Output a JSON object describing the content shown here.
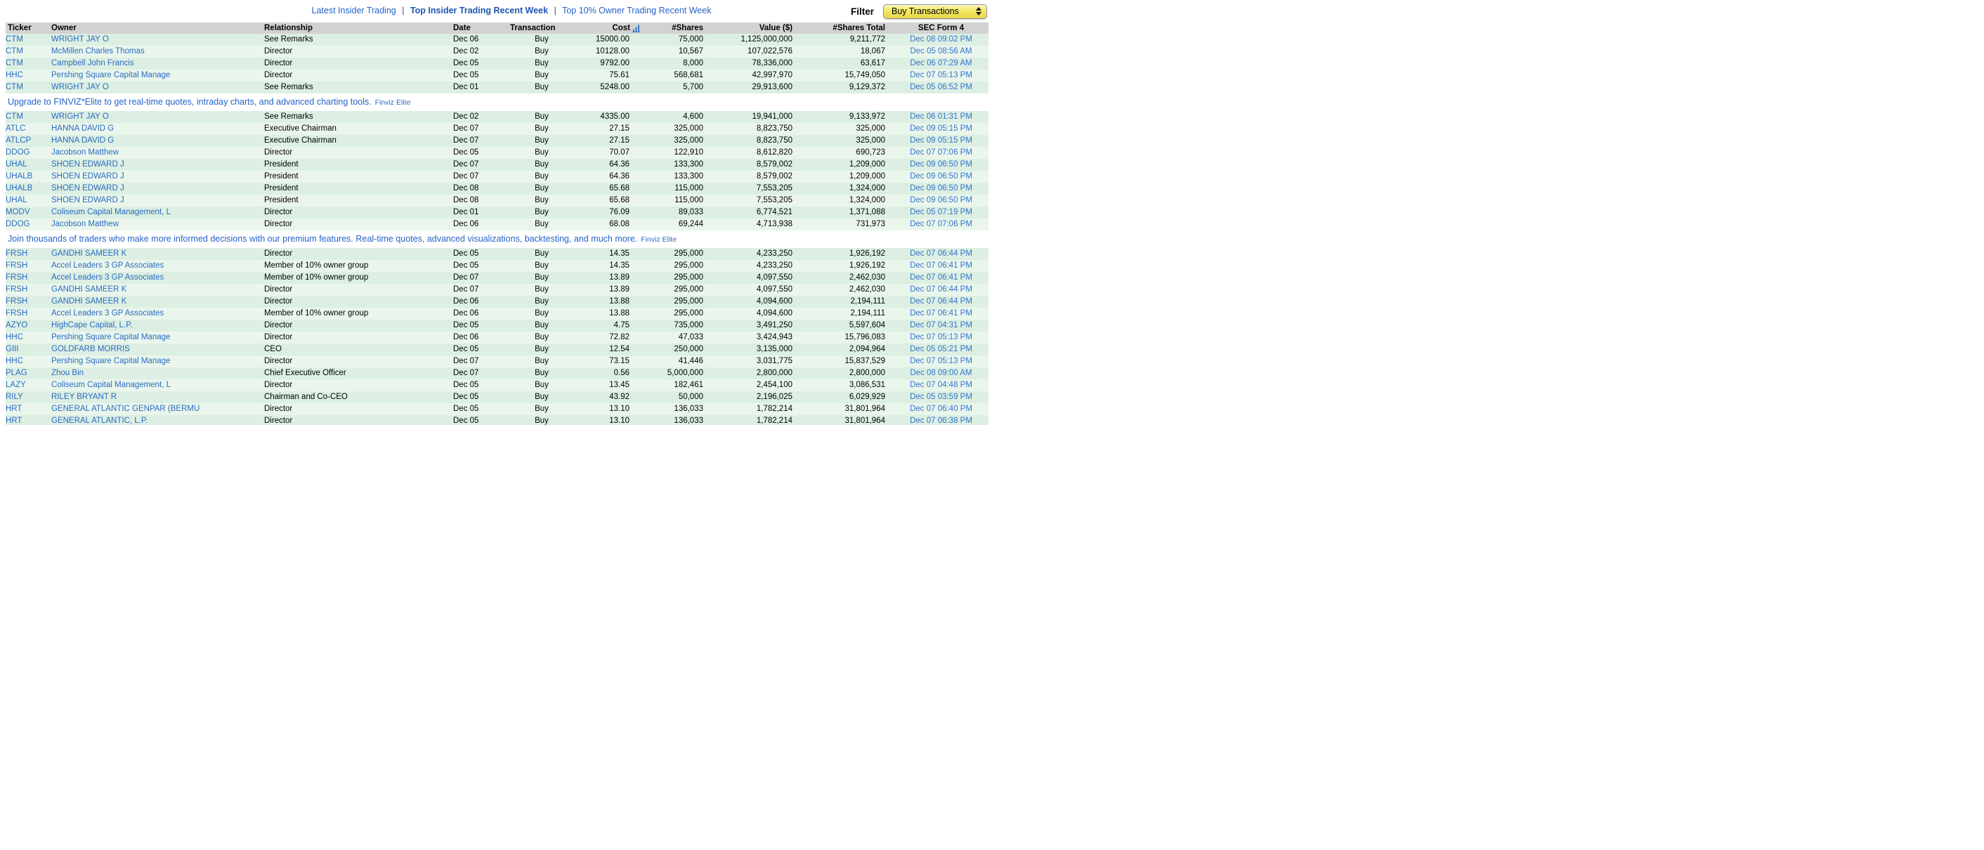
{
  "nav": {
    "separator": "|",
    "links": [
      {
        "label": "Latest Insider Trading"
      },
      {
        "label": "Top Insider Trading Recent Week"
      },
      {
        "label": "Top 10% Owner Trading Recent Week"
      }
    ],
    "filter": {
      "label": "Filter",
      "selected": "Buy Transactions"
    }
  },
  "colors": {
    "link_blue": "#2b6bc2",
    "sec_form_link_blue": "#3374cd",
    "nav_blue": "#2563c9",
    "promo_blue": "#2563c9",
    "elite_purple": "#b760c9",
    "row_green_dark": "#dcefe2",
    "row_green_light": "#eaf6ec",
    "header_gray": "#d2d2d2",
    "filter_yellow": "#f2e664"
  },
  "promos": [
    {
      "text": "Upgrade to FINVIZ*Elite to get real-time quotes, intraday charts, and advanced charting tools.",
      "link": "Finviz Elite"
    },
    {
      "text": "Join thousands of traders who make more informed decisions with our premium features. Real-time quotes, advanced visualizations, backtesting, and much more.",
      "link": "Finviz Elite"
    }
  ],
  "table": {
    "columns": [
      "Ticker",
      "Owner",
      "Relationship",
      "Date",
      "Transaction",
      "Cost",
      "#Shares",
      "Value ($)",
      "#Shares Total",
      "SEC Form 4"
    ],
    "sorted_column": "Cost",
    "sort_icon": "bar-chart-icon",
    "groups": [
      {
        "rows": [
          {
            "ticker": "CTM",
            "owner": "WRIGHT JAY O",
            "relationship": "See Remarks",
            "date": "Dec 06",
            "transaction": "Buy",
            "cost": "15000.00",
            "shares": "75,000",
            "value": "1,125,000,000",
            "shares_total": "9,211,772",
            "sec_form": "Dec 08 09:02 PM"
          },
          {
            "ticker": "CTM",
            "owner": "McMillen Charles Thomas",
            "relationship": "Director",
            "date": "Dec 02",
            "transaction": "Buy",
            "cost": "10128.00",
            "shares": "10,567",
            "value": "107,022,576",
            "shares_total": "18,067",
            "sec_form": "Dec 05 08:56 AM"
          },
          {
            "ticker": "CTM",
            "owner": "Campbell John Francis",
            "relationship": "Director",
            "date": "Dec 05",
            "transaction": "Buy",
            "cost": "9792.00",
            "shares": "8,000",
            "value": "78,336,000",
            "shares_total": "63,617",
            "sec_form": "Dec 06 07:29 AM"
          },
          {
            "ticker": "HHC",
            "owner": "Pershing Square Capital Manage",
            "relationship": "Director",
            "date": "Dec 05",
            "transaction": "Buy",
            "cost": "75.61",
            "shares": "568,681",
            "value": "42,997,970",
            "shares_total": "15,749,050",
            "sec_form": "Dec 07 05:13 PM"
          },
          {
            "ticker": "CTM",
            "owner": "WRIGHT JAY O",
            "relationship": "See Remarks",
            "date": "Dec 01",
            "transaction": "Buy",
            "cost": "5248.00",
            "shares": "5,700",
            "value": "29,913,600",
            "shares_total": "9,129,372",
            "sec_form": "Dec 05 06:52 PM"
          }
        ]
      },
      {
        "rows": [
          {
            "ticker": "CTM",
            "owner": "WRIGHT JAY O",
            "relationship": "See Remarks",
            "date": "Dec 02",
            "transaction": "Buy",
            "cost": "4335.00",
            "shares": "4,600",
            "value": "19,941,000",
            "shares_total": "9,133,972",
            "sec_form": "Dec 06 01:31 PM"
          },
          {
            "ticker": "ATLC",
            "owner": "HANNA DAVID G",
            "relationship": "Executive Chairman",
            "date": "Dec 07",
            "transaction": "Buy",
            "cost": "27.15",
            "shares": "325,000",
            "value": "8,823,750",
            "shares_total": "325,000",
            "sec_form": "Dec 09 05:15 PM"
          },
          {
            "ticker": "ATLCP",
            "owner": "HANNA DAVID G",
            "relationship": "Executive Chairman",
            "date": "Dec 07",
            "transaction": "Buy",
            "cost": "27.15",
            "shares": "325,000",
            "value": "8,823,750",
            "shares_total": "325,000",
            "sec_form": "Dec 09 05:15 PM"
          },
          {
            "ticker": "DDOG",
            "owner": "Jacobson Matthew",
            "relationship": "Director",
            "date": "Dec 05",
            "transaction": "Buy",
            "cost": "70.07",
            "shares": "122,910",
            "value": "8,612,820",
            "shares_total": "690,723",
            "sec_form": "Dec 07 07:06 PM"
          },
          {
            "ticker": "UHAL",
            "owner": "SHOEN EDWARD J",
            "relationship": "President",
            "date": "Dec 07",
            "transaction": "Buy",
            "cost": "64.36",
            "shares": "133,300",
            "value": "8,579,002",
            "shares_total": "1,209,000",
            "sec_form": "Dec 09 06:50 PM"
          },
          {
            "ticker": "UHALB",
            "owner": "SHOEN EDWARD J",
            "relationship": "President",
            "date": "Dec 07",
            "transaction": "Buy",
            "cost": "64.36",
            "shares": "133,300",
            "value": "8,579,002",
            "shares_total": "1,209,000",
            "sec_form": "Dec 09 06:50 PM"
          },
          {
            "ticker": "UHALB",
            "owner": "SHOEN EDWARD J",
            "relationship": "President",
            "date": "Dec 08",
            "transaction": "Buy",
            "cost": "65.68",
            "shares": "115,000",
            "value": "7,553,205",
            "shares_total": "1,324,000",
            "sec_form": "Dec 09 06:50 PM"
          },
          {
            "ticker": "UHAL",
            "owner": "SHOEN EDWARD J",
            "relationship": "President",
            "date": "Dec 08",
            "transaction": "Buy",
            "cost": "65.68",
            "shares": "115,000",
            "value": "7,553,205",
            "shares_total": "1,324,000",
            "sec_form": "Dec 09 06:50 PM"
          },
          {
            "ticker": "MODV",
            "owner": "Coliseum Capital Management, L",
            "relationship": "Director",
            "date": "Dec 01",
            "transaction": "Buy",
            "cost": "76.09",
            "shares": "89,033",
            "value": "6,774,521",
            "shares_total": "1,371,088",
            "sec_form": "Dec 05 07:19 PM"
          },
          {
            "ticker": "DDOG",
            "owner": "Jacobson Matthew",
            "relationship": "Director",
            "date": "Dec 06",
            "transaction": "Buy",
            "cost": "68.08",
            "shares": "69,244",
            "value": "4,713,938",
            "shares_total": "731,973",
            "sec_form": "Dec 07 07:06 PM"
          }
        ]
      },
      {
        "rows": [
          {
            "ticker": "FRSH",
            "owner": "GANDHI SAMEER K",
            "relationship": "Director",
            "date": "Dec 05",
            "transaction": "Buy",
            "cost": "14.35",
            "shares": "295,000",
            "value": "4,233,250",
            "shares_total": "1,926,192",
            "sec_form": "Dec 07 06:44 PM"
          },
          {
            "ticker": "FRSH",
            "owner": "Accel Leaders 3 GP Associates",
            "relationship": "Member of 10% owner group",
            "date": "Dec 05",
            "transaction": "Buy",
            "cost": "14.35",
            "shares": "295,000",
            "value": "4,233,250",
            "shares_total": "1,926,192",
            "sec_form": "Dec 07 06:41 PM"
          },
          {
            "ticker": "FRSH",
            "owner": "Accel Leaders 3 GP Associates",
            "relationship": "Member of 10% owner group",
            "date": "Dec 07",
            "transaction": "Buy",
            "cost": "13.89",
            "shares": "295,000",
            "value": "4,097,550",
            "shares_total": "2,462,030",
            "sec_form": "Dec 07 06:41 PM"
          },
          {
            "ticker": "FRSH",
            "owner": "GANDHI SAMEER K",
            "relationship": "Director",
            "date": "Dec 07",
            "transaction": "Buy",
            "cost": "13.89",
            "shares": "295,000",
            "value": "4,097,550",
            "shares_total": "2,462,030",
            "sec_form": "Dec 07 06:44 PM"
          },
          {
            "ticker": "FRSH",
            "owner": "GANDHI SAMEER K",
            "relationship": "Director",
            "date": "Dec 06",
            "transaction": "Buy",
            "cost": "13.88",
            "shares": "295,000",
            "value": "4,094,600",
            "shares_total": "2,194,111",
            "sec_form": "Dec 07 06:44 PM"
          },
          {
            "ticker": "FRSH",
            "owner": "Accel Leaders 3 GP Associates",
            "relationship": "Member of 10% owner group",
            "date": "Dec 06",
            "transaction": "Buy",
            "cost": "13.88",
            "shares": "295,000",
            "value": "4,094,600",
            "shares_total": "2,194,111",
            "sec_form": "Dec 07 06:41 PM"
          },
          {
            "ticker": "AZYO",
            "owner": "HighCape Capital, L.P.",
            "relationship": "Director",
            "date": "Dec 05",
            "transaction": "Buy",
            "cost": "4.75",
            "shares": "735,000",
            "value": "3,491,250",
            "shares_total": "5,597,604",
            "sec_form": "Dec 07 04:31 PM"
          },
          {
            "ticker": "HHC",
            "owner": "Pershing Square Capital Manage",
            "relationship": "Director",
            "date": "Dec 06",
            "transaction": "Buy",
            "cost": "72.82",
            "shares": "47,033",
            "value": "3,424,943",
            "shares_total": "15,796,083",
            "sec_form": "Dec 07 05:13 PM"
          },
          {
            "ticker": "GIII",
            "owner": "GOLDFARB MORRIS",
            "relationship": "CEO",
            "date": "Dec 05",
            "transaction": "Buy",
            "cost": "12.54",
            "shares": "250,000",
            "value": "3,135,000",
            "shares_total": "2,094,964",
            "sec_form": "Dec 05 05:21 PM"
          },
          {
            "ticker": "HHC",
            "owner": "Pershing Square Capital Manage",
            "relationship": "Director",
            "date": "Dec 07",
            "transaction": "Buy",
            "cost": "73.15",
            "shares": "41,446",
            "value": "3,031,775",
            "shares_total": "15,837,529",
            "sec_form": "Dec 07 05:13 PM"
          },
          {
            "ticker": "PLAG",
            "owner": "Zhou Bin",
            "relationship": "Chief Executive Officer",
            "date": "Dec 07",
            "transaction": "Buy",
            "cost": "0.56",
            "shares": "5,000,000",
            "value": "2,800,000",
            "shares_total": "2,800,000",
            "sec_form": "Dec 08 09:00 AM"
          },
          {
            "ticker": "LAZY",
            "owner": "Coliseum Capital Management, L",
            "relationship": "Director",
            "date": "Dec 05",
            "transaction": "Buy",
            "cost": "13.45",
            "shares": "182,461",
            "value": "2,454,100",
            "shares_total": "3,086,531",
            "sec_form": "Dec 07 04:48 PM"
          },
          {
            "ticker": "RILY",
            "owner": "RILEY BRYANT R",
            "relationship": "Chairman and Co-CEO",
            "date": "Dec 05",
            "transaction": "Buy",
            "cost": "43.92",
            "shares": "50,000",
            "value": "2,196,025",
            "shares_total": "6,029,929",
            "sec_form": "Dec 05 03:59 PM"
          },
          {
            "ticker": "HRT",
            "owner": "GENERAL ATLANTIC GENPAR (BERMU",
            "relationship": "Director",
            "date": "Dec 05",
            "transaction": "Buy",
            "cost": "13.10",
            "shares": "136,033",
            "value": "1,782,214",
            "shares_total": "31,801,964",
            "sec_form": "Dec 07 06:40 PM"
          },
          {
            "ticker": "HRT",
            "owner": "GENERAL ATLANTIC, L.P.",
            "relationship": "Director",
            "date": "Dec 05",
            "transaction": "Buy",
            "cost": "13.10",
            "shares": "136,033",
            "value": "1,782,214",
            "shares_total": "31,801,964",
            "sec_form": "Dec 07 06:38 PM"
          }
        ]
      }
    ]
  }
}
